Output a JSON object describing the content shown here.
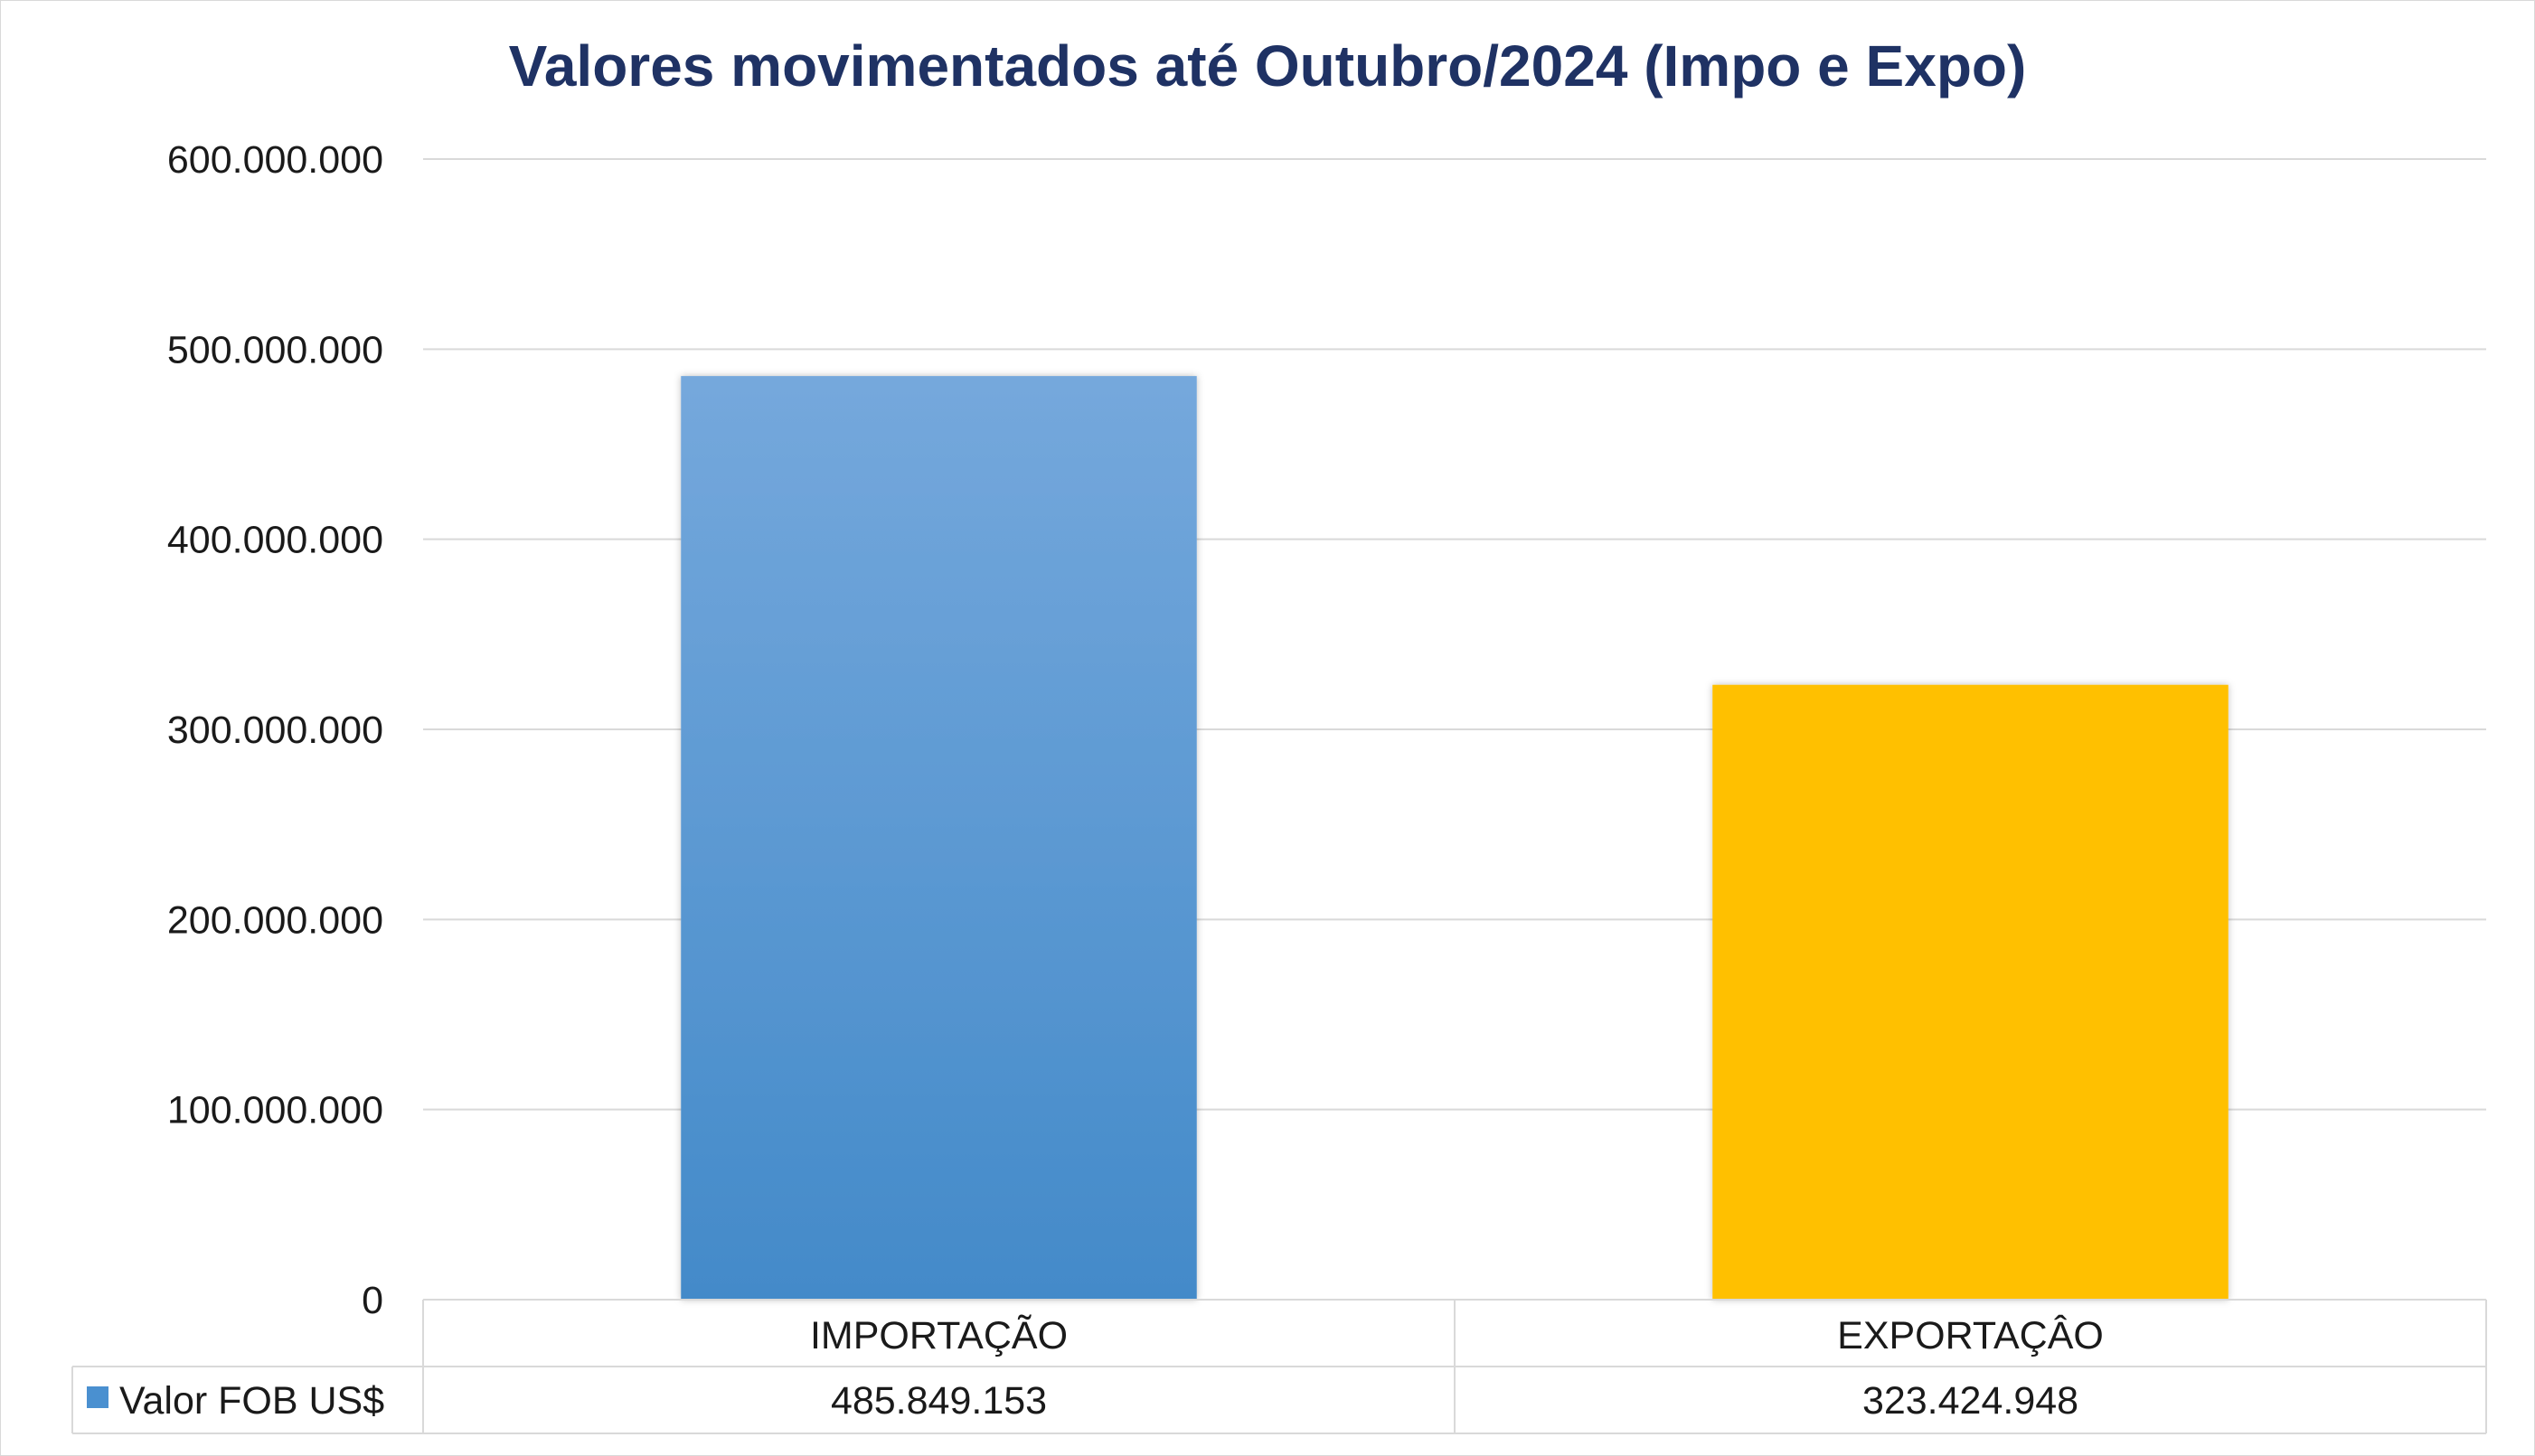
{
  "chart_data": {
    "type": "bar",
    "title": "Valores movimentados até Outubro/2024 (Impo e Expo)",
    "categories": [
      "IMPORTAÇÃO",
      "EXPORTAÇÂO"
    ],
    "series": [
      {
        "name": "Valor FOB US$",
        "values": [
          485849153,
          323424948
        ],
        "value_labels": [
          "485.849.153",
          "323.424.948"
        ],
        "colors": [
          "#5b9bd5",
          "#ffc000"
        ],
        "legend_color": "#4a90d0"
      }
    ],
    "ylim": [
      0,
      600000000
    ],
    "y_ticks": [
      0,
      100000000,
      200000000,
      300000000,
      400000000,
      500000000,
      600000000
    ],
    "y_tick_labels": [
      "0",
      "100.000.000",
      "200.000.000",
      "300.000.000",
      "400.000.000",
      "500.000.000",
      "600.000.000"
    ],
    "grid": true,
    "legend": "data-table",
    "xlabel": "",
    "ylabel": ""
  },
  "colors": {
    "title": "#1f3264",
    "grid": "#d9d9d9",
    "import_top": "#75a8dc",
    "import_bottom": "#438ac9",
    "export": "#ffc000"
  }
}
